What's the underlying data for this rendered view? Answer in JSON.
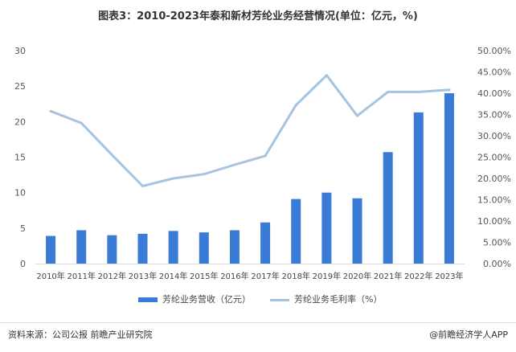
{
  "title": "图表3：2010-2023年泰和新材芳纶业务经营情况(单位：亿元，%)",
  "chart_data": {
    "type": "bar+line",
    "categories": [
      "2010年",
      "2011年",
      "2012年",
      "2013年",
      "2014年",
      "2015年",
      "2016年",
      "2017年",
      "2018年",
      "2019年",
      "2020年",
      "2021年",
      "2022年",
      "2023年"
    ],
    "series": [
      {
        "name": "芳纶业务营收（亿元）",
        "type": "bar",
        "axis": "left",
        "color": "#3a7bd5",
        "values": [
          3.9,
          4.7,
          4.0,
          4.2,
          4.6,
          4.4,
          4.7,
          5.8,
          9.1,
          10.0,
          9.2,
          15.7,
          21.3,
          24.0
        ]
      },
      {
        "name": "芳纶业务毛利率（%）",
        "type": "line",
        "axis": "right",
        "color": "#a6c3e0",
        "values": [
          35.8,
          33.0,
          25.5,
          18.2,
          20.0,
          21.0,
          23.2,
          25.3,
          37.2,
          44.2,
          34.7,
          40.3,
          40.3,
          40.8
        ]
      }
    ],
    "y_left": {
      "min": 0,
      "max": 30,
      "ticks": [
        "0",
        "5",
        "10",
        "15",
        "20",
        "25",
        "30"
      ]
    },
    "y_right": {
      "min": 0,
      "max": 50,
      "ticks": [
        "0.00%",
        "5.00%",
        "10.00%",
        "15.00%",
        "20.00%",
        "25.00%",
        "30.00%",
        "35.00%",
        "40.00%",
        "45.00%",
        "50.00%"
      ]
    },
    "legend_position": "bottom"
  },
  "footer": {
    "source": "资料来源：公司公报 前瞻产业研究院",
    "brand": "@前瞻经济学人APP"
  }
}
